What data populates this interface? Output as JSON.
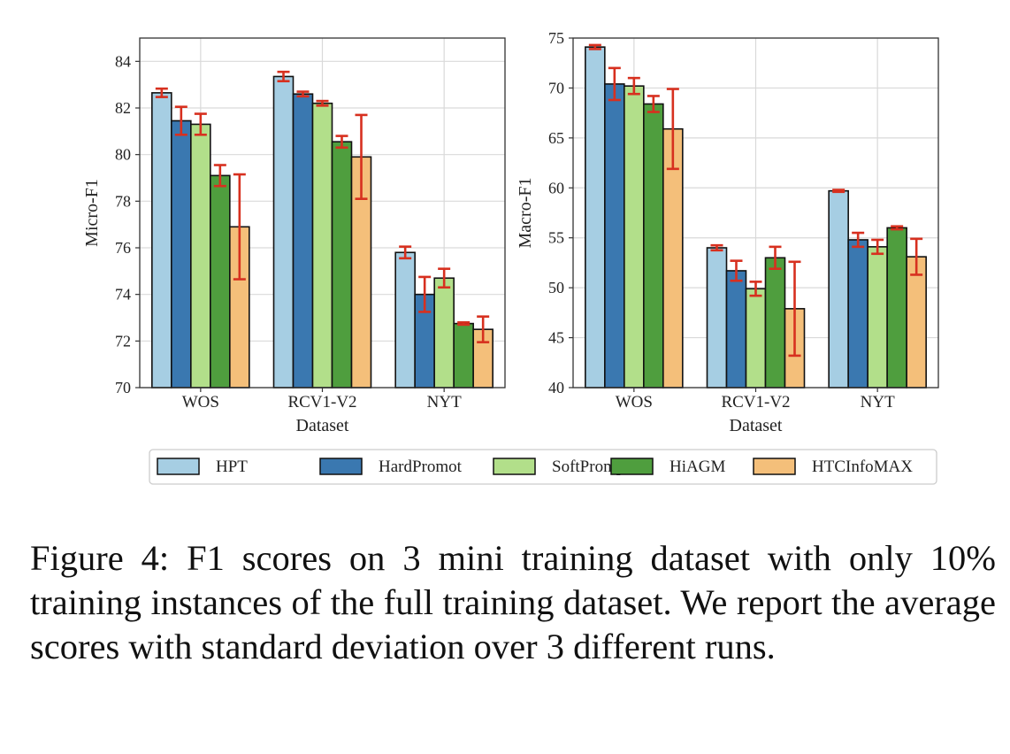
{
  "chart_data": [
    {
      "type": "bar",
      "xlabel": "Dataset",
      "ylabel": "Micro-F1",
      "ylim": [
        70,
        85
      ],
      "yticks": [
        70,
        72,
        74,
        76,
        78,
        80,
        82,
        84
      ],
      "grid": true,
      "categories": [
        "WOS",
        "RCV1-V2",
        "NYT"
      ],
      "series": [
        {
          "name": "HPT",
          "values": [
            82.65,
            83.35,
            75.8
          ],
          "error": [
            0.18,
            0.2,
            0.25
          ]
        },
        {
          "name": "HardPromot",
          "values": [
            81.45,
            82.6,
            74.0
          ],
          "error": [
            0.6,
            0.1,
            0.75
          ]
        },
        {
          "name": "SoftPrompt",
          "values": [
            81.3,
            82.2,
            74.7
          ],
          "error": [
            0.45,
            0.1,
            0.4
          ]
        },
        {
          "name": "HiAGM",
          "values": [
            79.1,
            80.55,
            72.75
          ],
          "error": [
            0.45,
            0.25,
            0.05
          ]
        },
        {
          "name": "HTCInfoMAX",
          "values": [
            76.9,
            79.9,
            72.5
          ],
          "error": [
            2.25,
            1.8,
            0.55
          ]
        }
      ]
    },
    {
      "type": "bar",
      "xlabel": "Dataset",
      "ylabel": "Macro-F1",
      "ylim": [
        40,
        75
      ],
      "yticks": [
        40,
        45,
        50,
        55,
        60,
        65,
        70,
        75
      ],
      "grid": true,
      "categories": [
        "WOS",
        "RCV1-V2",
        "NYT"
      ],
      "series": [
        {
          "name": "HPT",
          "values": [
            74.1,
            54.0,
            59.7
          ],
          "error": [
            0.2,
            0.25,
            0.1
          ]
        },
        {
          "name": "HardPromot",
          "values": [
            70.4,
            51.7,
            54.8
          ],
          "error": [
            1.6,
            1.0,
            0.7
          ]
        },
        {
          "name": "SoftPrompt",
          "values": [
            70.2,
            49.9,
            54.1
          ],
          "error": [
            0.8,
            0.7,
            0.7
          ]
        },
        {
          "name": "HiAGM",
          "values": [
            68.4,
            53.0,
            56.0
          ],
          "error": [
            0.8,
            1.1,
            0.15
          ]
        },
        {
          "name": "HTCInfoMAX",
          "values": [
            65.9,
            47.9,
            53.1
          ],
          "error": [
            4.0,
            4.7,
            1.8
          ]
        }
      ]
    }
  ],
  "colors": {
    "HPT": "#a6cee3",
    "HardPromot": "#3a78b0",
    "SoftPrompt": "#b2df8a",
    "HiAGM": "#4f9e3e",
    "HTCInfoMAX": "#f4bf7a",
    "error_bar": "#d7301f",
    "grid": "#d9d9d9",
    "axis": "#333333"
  },
  "legend": {
    "position": "bottom-center",
    "items": [
      "HPT",
      "HardPromot",
      "SoftPrompt",
      "HiAGM",
      "HTCInfoMAX"
    ]
  },
  "caption": {
    "text": "Figure 4: F1 scores on 3 mini training dataset with only 10% training instances of the full training dataset. We report the average scores with standard deviation over 3 different runs."
  }
}
